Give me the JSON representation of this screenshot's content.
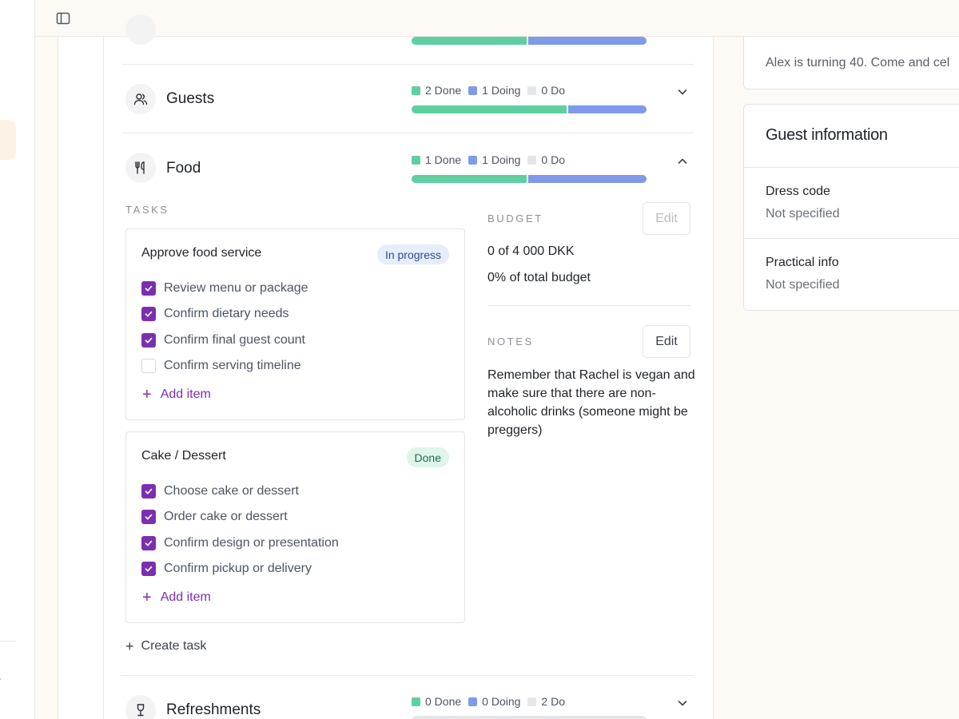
{
  "categories": [
    {
      "name": "Guests",
      "icon": "users-icon",
      "done_label": "2 Done",
      "doing_label": "1 Doing",
      "do_label": "0 Do",
      "done": 2,
      "doing": 1,
      "do": 0
    },
    {
      "name": "Food",
      "icon": "utensils-icon",
      "done_label": "1 Done",
      "doing_label": "1 Doing",
      "do_label": "0 Do",
      "done": 1,
      "doing": 1,
      "do": 0
    },
    {
      "name": "Refreshments",
      "icon": "wine-glass-icon",
      "done_label": "0 Done",
      "doing_label": "0 Doing",
      "do_label": "2 Do",
      "done": 0,
      "doing": 0,
      "do": 2
    }
  ],
  "top_partial_progress": {
    "done": 1,
    "doing": 1,
    "do": 0
  },
  "food": {
    "tasks_label": "TASKS",
    "tasks": [
      {
        "title": "Approve food service",
        "status": "In progress",
        "items": [
          {
            "label": "Review menu or package",
            "checked": true
          },
          {
            "label": "Confirm dietary needs",
            "checked": true
          },
          {
            "label": "Confirm final guest count",
            "checked": true
          },
          {
            "label": "Confirm serving timeline",
            "checked": false
          }
        ],
        "add_item_label": "Add item"
      },
      {
        "title": "Cake / Dessert",
        "status": "Done",
        "items": [
          {
            "label": "Choose cake or dessert",
            "checked": true
          },
          {
            "label": "Order cake or dessert",
            "checked": true
          },
          {
            "label": "Confirm design or presentation",
            "checked": true
          },
          {
            "label": "Confirm pickup or delivery",
            "checked": true
          }
        ],
        "add_item_label": "Add item"
      }
    ],
    "create_task_label": "Create task",
    "budget_label": "BUDGET",
    "budget_edit_label": "Edit",
    "budget_amount": "0 of 4 000 DKK",
    "budget_percent": "0% of total budget",
    "notes_label": "NOTES",
    "notes_edit_label": "Edit",
    "notes_text": "Remember that Rachel is vegan and make sure that there are non-alcoholic drinks (someone might be preggers)"
  },
  "sidebar": {
    "event_description": "Alex is turning 40. Come and cel"
  },
  "guest_info": {
    "title": "Guest information",
    "dress_code_label": "Dress code",
    "dress_code_value": "Not specified",
    "practical_info_label": "Practical info",
    "practical_info_value": "Not specified"
  },
  "colors": {
    "done": "#5fcfa1",
    "doing": "#7f9ae8",
    "do": "#e5e6e8",
    "accent": "#7b2fb0"
  }
}
